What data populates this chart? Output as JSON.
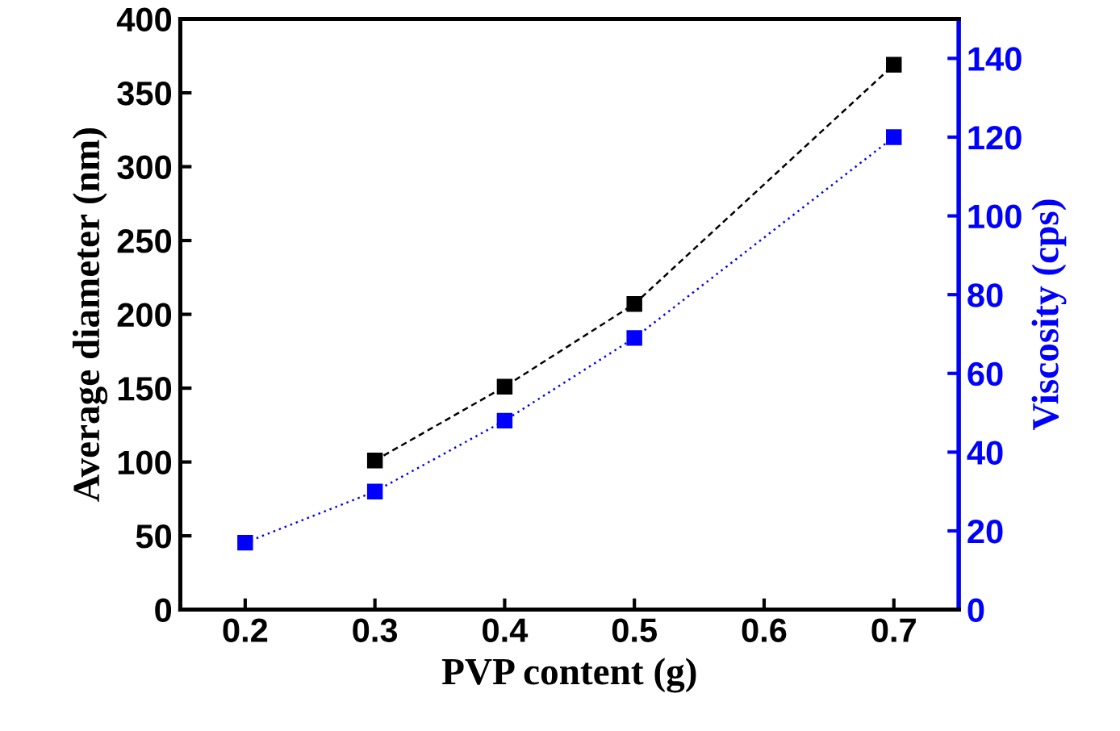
{
  "chart_data": {
    "type": "line",
    "xlabel": "PVP content (g)",
    "ylabel": "Average diameter (nm)",
    "y2label": "Viscosity (cps)",
    "xlim": [
      0.15,
      0.75
    ],
    "xticks": [
      0.2,
      0.3,
      0.4,
      0.5,
      0.6,
      0.7
    ],
    "ylim": [
      0,
      400
    ],
    "yticks": [
      0,
      50,
      100,
      150,
      200,
      250,
      300,
      350,
      400
    ],
    "y2lim": [
      0,
      150
    ],
    "y2ticks": [
      0,
      20,
      40,
      60,
      80,
      100,
      120,
      140
    ],
    "marker": "square",
    "grid": false,
    "legend": false,
    "series": [
      {
        "color": "#000000",
        "line_style": "dashed",
        "x": [
          0.3,
          0.4,
          0.5,
          0.7
        ],
        "values": [
          101,
          151,
          207,
          369
        ]
      },
      {
        "color": "#0000ff",
        "line_style": "dotted",
        "axis": "y2",
        "x": [
          0.2,
          0.3,
          0.4,
          0.5,
          0.7
        ],
        "values": [
          17,
          30,
          48,
          69,
          120
        ]
      }
    ]
  }
}
